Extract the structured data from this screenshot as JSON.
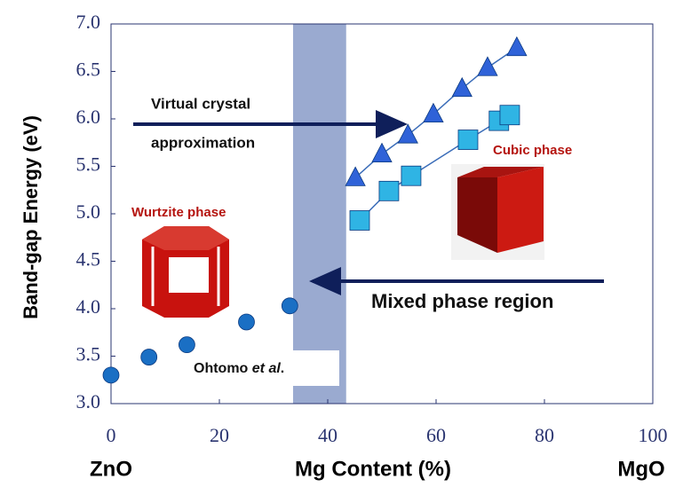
{
  "chart_data": {
    "type": "scatter",
    "y_label": "Band-gap Energy (eV)",
    "x_label": "Mg Content (%)",
    "x_left_label": "ZnO",
    "x_right_label": "MgO",
    "xlim": [
      0,
      100
    ],
    "ylim": [
      3.0,
      7.0
    ],
    "xticks": [
      0,
      20,
      40,
      60,
      80,
      100
    ],
    "yticks": [
      {
        "value": 3,
        "label": "3.0"
      },
      3.5,
      {
        "value": 4,
        "label": "4.0"
      },
      4.5,
      {
        "value": 5,
        "label": "5.0"
      },
      5.5,
      {
        "value": 6,
        "label": "6.0"
      },
      6.5,
      {
        "value": 7,
        "label": "7.0"
      }
    ],
    "shaded_region": [
      33.6,
      43.4
    ],
    "series": [
      {
        "marker": "circle",
        "color": "#1a6fc4",
        "x": [
          0,
          7,
          14,
          25,
          33
        ],
        "values": [
          3.3,
          3.49,
          3.62,
          3.86,
          4.03
        ]
      },
      {
        "marker": "triangle",
        "color": "#2f62d8",
        "fit_line": true,
        "x": [
          45.1,
          50,
          54.8,
          59.5,
          64.8,
          69.5,
          74.9
        ],
        "values": [
          5.38,
          5.63,
          5.83,
          6.05,
          6.32,
          6.54,
          6.75
        ]
      },
      {
        "marker": "square",
        "color": "#2fb4e4",
        "fit_line": true,
        "x": [
          45.9,
          51.3,
          55.4,
          65.9,
          71.6,
          73.6
        ],
        "values": [
          4.93,
          5.24,
          5.4,
          5.78,
          5.98,
          6.04
        ]
      }
    ],
    "annotations": {
      "vca_line1": "Virtual crystal",
      "vca_line2": "approximation",
      "mixed": "Mixed phase region",
      "cubic": "Cubic phase",
      "wurtzite": "Wurtzite phase",
      "ohtomo": [
        "Ohtomo ",
        "et al",
        "."
      ]
    }
  }
}
